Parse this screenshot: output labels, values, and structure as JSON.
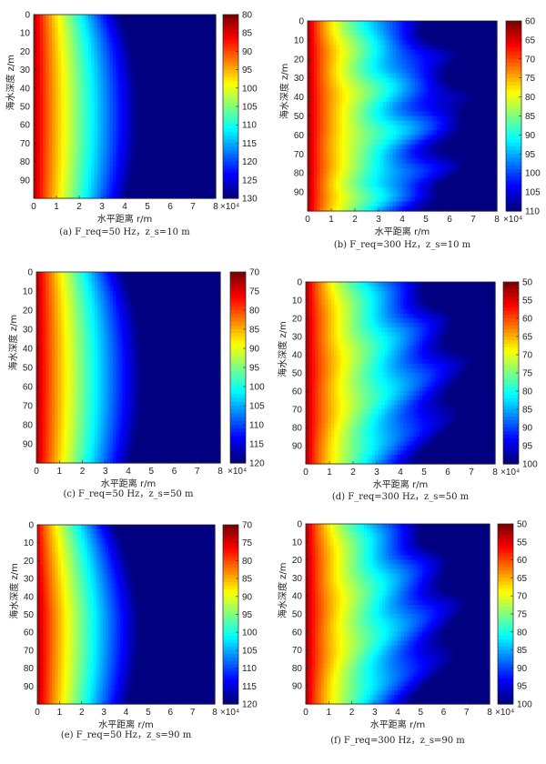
{
  "chart_data": [
    {
      "id": "a",
      "type": "heatmap",
      "caption": "(a) F_req=50 Hz，z_s=10 m",
      "xlabel": "水平距离 r/m",
      "ylabel": "海水深度 z/m",
      "x_ticks": [
        "0",
        "1",
        "2",
        "3",
        "4",
        "5",
        "6",
        "7",
        "8"
      ],
      "xlim": [
        0,
        8
      ],
      "x_multiplier": "×10⁴",
      "y_ticks": [
        "0",
        "10",
        "20",
        "30",
        "40",
        "50",
        "60",
        "70",
        "80",
        "90"
      ],
      "ylim": [
        0,
        100
      ],
      "colorbar_ticks": [
        "80",
        "85",
        "90",
        "95",
        "100",
        "105",
        "110",
        "115",
        "120",
        "125",
        "130"
      ],
      "colorbar_range": [
        80,
        130
      ],
      "multiplier_on_colorbar": true,
      "field": {
        "frequency_hz": 50,
        "source_depth_m": 10
      }
    },
    {
      "id": "b",
      "type": "heatmap",
      "caption": "(b) F_req=300 Hz，z_s=10 m",
      "xlabel": "水平距离 r/m",
      "ylabel": "海水深度 z/m",
      "x_ticks": [
        "0",
        "1",
        "2",
        "3",
        "4",
        "5",
        "6",
        "7",
        "8"
      ],
      "xlim": [
        0,
        8
      ],
      "x_multiplier": "×10⁴",
      "y_ticks": [
        "0",
        "10",
        "20",
        "30",
        "40",
        "50",
        "60",
        "70",
        "80",
        "90"
      ],
      "ylim": [
        0,
        100
      ],
      "colorbar_ticks": [
        "60",
        "65",
        "70",
        "75",
        "80",
        "85",
        "90",
        "95",
        "100",
        "105",
        "110"
      ],
      "colorbar_range": [
        60,
        110
      ],
      "multiplier_on_colorbar": true,
      "field": {
        "frequency_hz": 300,
        "source_depth_m": 10
      }
    },
    {
      "id": "c",
      "type": "heatmap",
      "caption": "(c) F_req=50 Hz，z_s=50 m",
      "xlabel": "水平距离 r/m",
      "ylabel": "海水深度 z/m",
      "x_ticks": [
        "0",
        "1",
        "2",
        "3",
        "4",
        "5",
        "6",
        "7",
        "8"
      ],
      "xlim": [
        0,
        8
      ],
      "x_multiplier": "×10⁴",
      "y_ticks": [
        "0",
        "10",
        "20",
        "30",
        "40",
        "50",
        "60",
        "70",
        "80",
        "90"
      ],
      "ylim": [
        0,
        100
      ],
      "colorbar_ticks": [
        "70",
        "75",
        "80",
        "85",
        "90",
        "95",
        "100",
        "105",
        "110",
        "115",
        "120"
      ],
      "colorbar_range": [
        70,
        120
      ],
      "multiplier_on_colorbar": true,
      "field": {
        "frequency_hz": 50,
        "source_depth_m": 50
      }
    },
    {
      "id": "d",
      "type": "heatmap",
      "caption": "(d) F_req=300 Hz，z_s=50 m",
      "xlabel": "水平距离 r/m",
      "ylabel": "海水深度 z/m",
      "x_ticks": [
        "0",
        "1",
        "2",
        "3",
        "4",
        "5",
        "6",
        "7",
        "8"
      ],
      "xlim": [
        0,
        8
      ],
      "x_multiplier": "×10⁴",
      "y_ticks": [
        "0",
        "10",
        "20",
        "30",
        "40",
        "50",
        "60",
        "70",
        "80",
        "90"
      ],
      "ylim": [
        0,
        100
      ],
      "colorbar_ticks": [
        "50",
        "55",
        "60",
        "65",
        "70",
        "75",
        "80",
        "85",
        "90",
        "95",
        "100"
      ],
      "colorbar_range": [
        50,
        100
      ],
      "multiplier_on_colorbar": true,
      "field": {
        "frequency_hz": 300,
        "source_depth_m": 50
      }
    },
    {
      "id": "e",
      "type": "heatmap",
      "caption": "(e) F_req=50 Hz，z_s=90 m",
      "xlabel": "水平距离 r/m",
      "ylabel": "海水深度 z/m",
      "x_ticks": [
        "0",
        "1",
        "2",
        "3",
        "4",
        "5",
        "6",
        "7",
        "8"
      ],
      "xlim": [
        0,
        8
      ],
      "x_multiplier": "×10⁴",
      "y_ticks": [
        "0",
        "10",
        "20",
        "30",
        "40",
        "50",
        "60",
        "70",
        "80",
        "90"
      ],
      "ylim": [
        0,
        100
      ],
      "colorbar_ticks": [
        "70",
        "75",
        "80",
        "85",
        "90",
        "95",
        "100",
        "105",
        "110",
        "115",
        "120"
      ],
      "colorbar_range": [
        70,
        120
      ],
      "multiplier_on_colorbar": true,
      "field": {
        "frequency_hz": 50,
        "source_depth_m": 90
      }
    },
    {
      "id": "f",
      "type": "heatmap",
      "caption": "(f) F_req=300 Hz，z_s=90 m",
      "xlabel": "水平距离 r/m",
      "ylabel": "海水深度 z/m",
      "x_ticks": [
        "0",
        "1",
        "2",
        "3",
        "4",
        "5",
        "6",
        "7",
        "8"
      ],
      "xlim": [
        0,
        8
      ],
      "x_multiplier": "×10⁴",
      "y_ticks": [
        "0",
        "10",
        "20",
        "30",
        "40",
        "50",
        "60",
        "70",
        "80",
        "90"
      ],
      "ylim": [
        0,
        100
      ],
      "colorbar_ticks": [
        "50",
        "55",
        "60",
        "65",
        "70",
        "75",
        "80",
        "85",
        "90",
        "95",
        "100"
      ],
      "colorbar_range": [
        50,
        100
      ],
      "multiplier_on_colorbar": true,
      "field": {
        "frequency_hz": 300,
        "source_depth_m": 90
      }
    }
  ],
  "colormap": "jet",
  "colors": {
    "background": "#ffffff",
    "axis": "#222222",
    "field_floor": "#2b3a86"
  }
}
